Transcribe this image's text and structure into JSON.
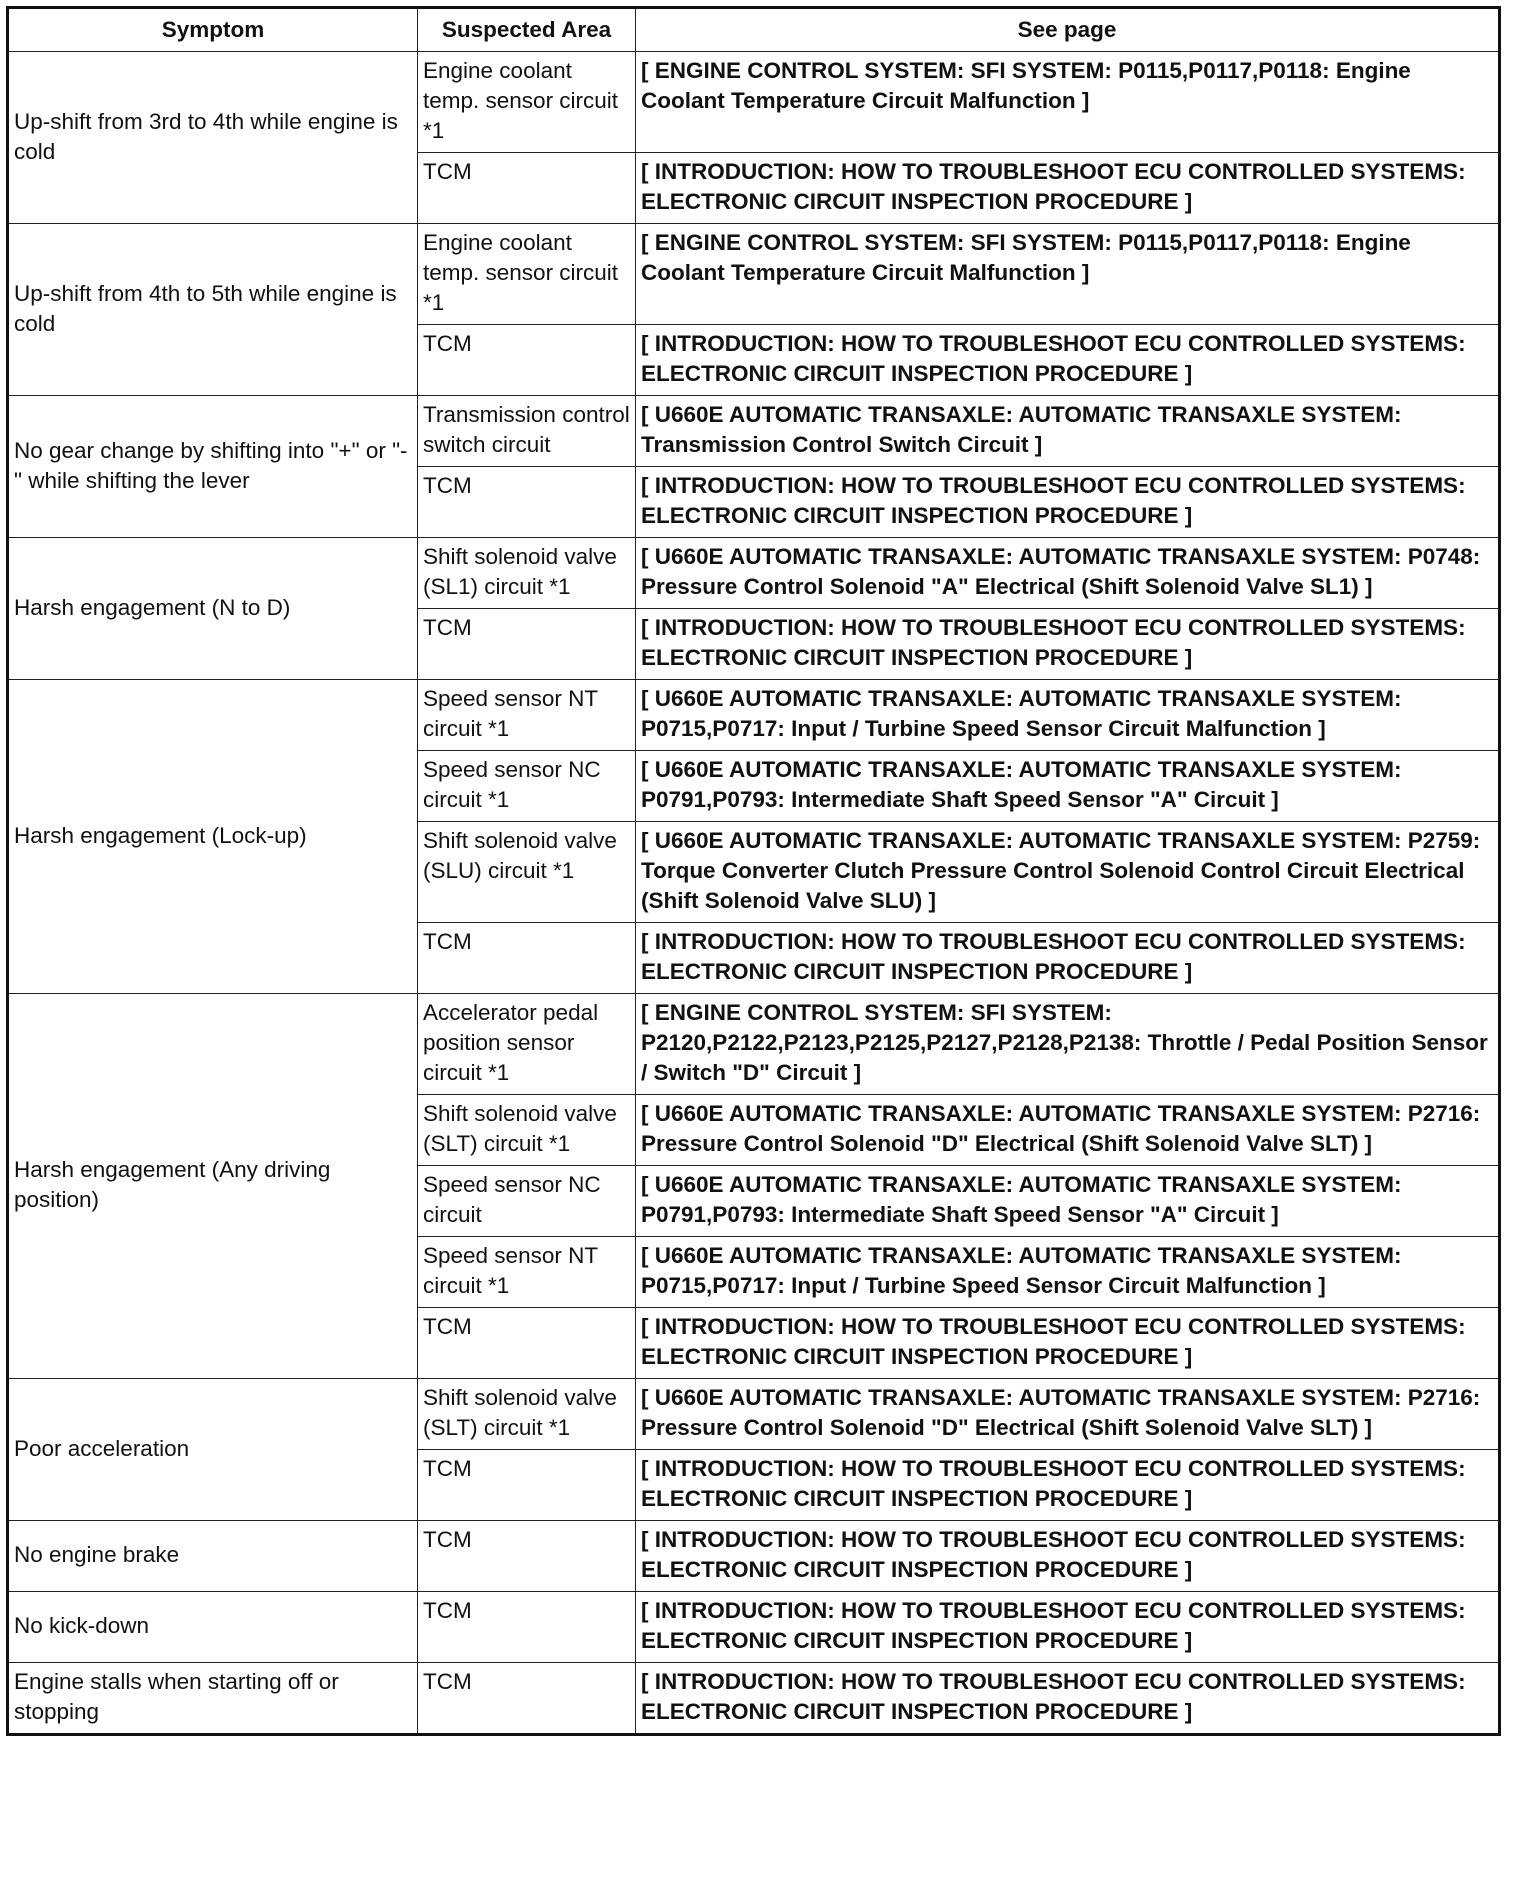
{
  "headers": {
    "symptom": "Symptom",
    "area": "Suspected Area",
    "page": "See page"
  },
  "rows": [
    {
      "symptom": "Up-shift from 3rd to 4th while engine is cold",
      "items": [
        {
          "area": "Engine coolant temp. sensor circuit *1",
          "page": "[ ENGINE CONTROL SYSTEM: SFI SYSTEM: P0115,P0117,P0118: Engine Coolant Temperature Circuit Malfunction ]"
        },
        {
          "area": "TCM",
          "page": "[ INTRODUCTION: HOW TO TROUBLESHOOT ECU CONTROLLED SYSTEMS: ELECTRONIC CIRCUIT INSPECTION PROCEDURE ]"
        }
      ]
    },
    {
      "symptom": "Up-shift from 4th to 5th while engine is cold",
      "items": [
        {
          "area": "Engine coolant temp. sensor circuit *1",
          "page": "[ ENGINE CONTROL SYSTEM: SFI SYSTEM: P0115,P0117,P0118: Engine Coolant Temperature Circuit Malfunction ]"
        },
        {
          "area": "TCM",
          "page": "[ INTRODUCTION: HOW TO TROUBLESHOOT ECU CONTROLLED SYSTEMS: ELECTRONIC CIRCUIT INSPECTION PROCEDURE ]"
        }
      ]
    },
    {
      "symptom": "No gear change by shifting into \"+\" or \"-\" while shifting the lever",
      "items": [
        {
          "area": "Transmission control switch circuit",
          "page": "[ U660E AUTOMATIC TRANSAXLE: AUTOMATIC TRANSAXLE SYSTEM: Transmission Control Switch Circuit ]"
        },
        {
          "area": "TCM",
          "page": "[ INTRODUCTION: HOW TO TROUBLESHOOT ECU CONTROLLED SYSTEMS: ELECTRONIC CIRCUIT INSPECTION PROCEDURE ]"
        }
      ]
    },
    {
      "symptom": "Harsh engagement (N to D)",
      "items": [
        {
          "area": "Shift solenoid valve (SL1) circuit *1",
          "page": "[ U660E AUTOMATIC TRANSAXLE: AUTOMATIC TRANSAXLE SYSTEM: P0748: Pressure Control Solenoid \"A\" Electrical (Shift Solenoid Valve SL1) ]"
        },
        {
          "area": "TCM",
          "page": "[ INTRODUCTION: HOW TO TROUBLESHOOT ECU CONTROLLED SYSTEMS: ELECTRONIC CIRCUIT INSPECTION PROCEDURE ]"
        }
      ]
    },
    {
      "symptom": "Harsh engagement (Lock-up)",
      "items": [
        {
          "area": "Speed sensor NT circuit *1",
          "page": "[ U660E AUTOMATIC TRANSAXLE: AUTOMATIC TRANSAXLE SYSTEM: P0715,P0717: Input / Turbine Speed Sensor Circuit Malfunction ]"
        },
        {
          "area": "Speed sensor NC circuit *1",
          "page": "[ U660E AUTOMATIC TRANSAXLE: AUTOMATIC TRANSAXLE SYSTEM: P0791,P0793: Intermediate Shaft Speed Sensor \"A\" Circuit ]"
        },
        {
          "area": "Shift solenoid valve (SLU) circuit *1",
          "page": "[ U660E AUTOMATIC TRANSAXLE: AUTOMATIC TRANSAXLE SYSTEM: P2759: Torque Converter Clutch Pressure Control Solenoid Control Circuit Electrical (Shift Solenoid Valve SLU) ]"
        },
        {
          "area": "TCM",
          "page": "[ INTRODUCTION: HOW TO TROUBLESHOOT ECU CONTROLLED SYSTEMS: ELECTRONIC CIRCUIT INSPECTION PROCEDURE ]"
        }
      ]
    },
    {
      "symptom": "Harsh engagement (Any driving position)",
      "items": [
        {
          "area": "Accelerator pedal position sensor circuit *1",
          "page": "[ ENGINE CONTROL SYSTEM: SFI SYSTEM: P2120,P2122,P2123,P2125,P2127,P2128,P2138: Throttle / Pedal Position Sensor / Switch \"D\" Circuit ]"
        },
        {
          "area": "Shift solenoid valve (SLT) circuit *1",
          "page": "[ U660E AUTOMATIC TRANSAXLE: AUTOMATIC TRANSAXLE SYSTEM: P2716: Pressure Control Solenoid \"D\" Electrical (Shift Solenoid Valve SLT) ]"
        },
        {
          "area": "Speed sensor NC circuit",
          "page": "[ U660E AUTOMATIC TRANSAXLE: AUTOMATIC TRANSAXLE SYSTEM: P0791,P0793: Intermediate Shaft Speed Sensor \"A\" Circuit ]"
        },
        {
          "area": "Speed sensor NT circuit *1",
          "page": "[ U660E AUTOMATIC TRANSAXLE: AUTOMATIC TRANSAXLE SYSTEM: P0715,P0717: Input / Turbine Speed Sensor Circuit Malfunction ]"
        },
        {
          "area": "TCM",
          "page": "[ INTRODUCTION: HOW TO TROUBLESHOOT ECU CONTROLLED SYSTEMS: ELECTRONIC CIRCUIT INSPECTION PROCEDURE ]"
        }
      ]
    },
    {
      "symptom": "Poor acceleration",
      "items": [
        {
          "area": "Shift solenoid valve (SLT) circuit *1",
          "page": "[ U660E AUTOMATIC TRANSAXLE: AUTOMATIC TRANSAXLE SYSTEM: P2716: Pressure Control Solenoid \"D\" Electrical (Shift Solenoid Valve SLT) ]"
        },
        {
          "area": "TCM",
          "page": "[ INTRODUCTION: HOW TO TROUBLESHOOT ECU CONTROLLED SYSTEMS: ELECTRONIC CIRCUIT INSPECTION PROCEDURE ]"
        }
      ]
    },
    {
      "symptom": "No engine brake",
      "items": [
        {
          "area": "TCM",
          "page": "[ INTRODUCTION: HOW TO TROUBLESHOOT ECU CONTROLLED SYSTEMS: ELECTRONIC CIRCUIT INSPECTION PROCEDURE ]"
        }
      ]
    },
    {
      "symptom": "No kick-down",
      "items": [
        {
          "area": "TCM",
          "page": "[ INTRODUCTION: HOW TO TROUBLESHOOT ECU CONTROLLED SYSTEMS: ELECTRONIC CIRCUIT INSPECTION PROCEDURE ]"
        }
      ]
    },
    {
      "symptom": "Engine stalls when starting off or stopping",
      "items": [
        {
          "area": "TCM",
          "page": "[ INTRODUCTION: HOW TO TROUBLESHOOT ECU CONTROLLED SYSTEMS: ELECTRONIC CIRCUIT INSPECTION PROCEDURE ]"
        }
      ]
    }
  ]
}
